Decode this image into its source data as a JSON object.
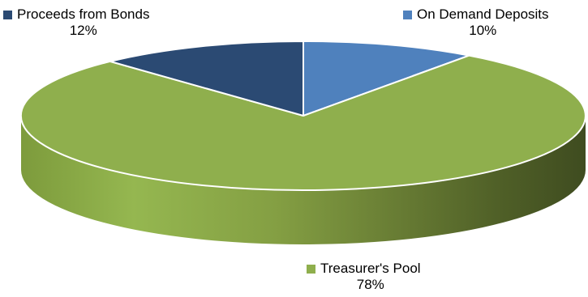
{
  "chart_data": {
    "type": "pie",
    "style": "3d",
    "slices": [
      {
        "label": "On Demand Deposits",
        "value": 10,
        "value_label": "10%",
        "color": "#4f81bd"
      },
      {
        "label": "Treasurer's Pool",
        "value": 78,
        "value_label": "78%",
        "color": "#8faf4d"
      },
      {
        "label": "Proceeds from Bonds",
        "value": 12,
        "value_label": "12%",
        "color": "#2b4a73"
      }
    ]
  }
}
